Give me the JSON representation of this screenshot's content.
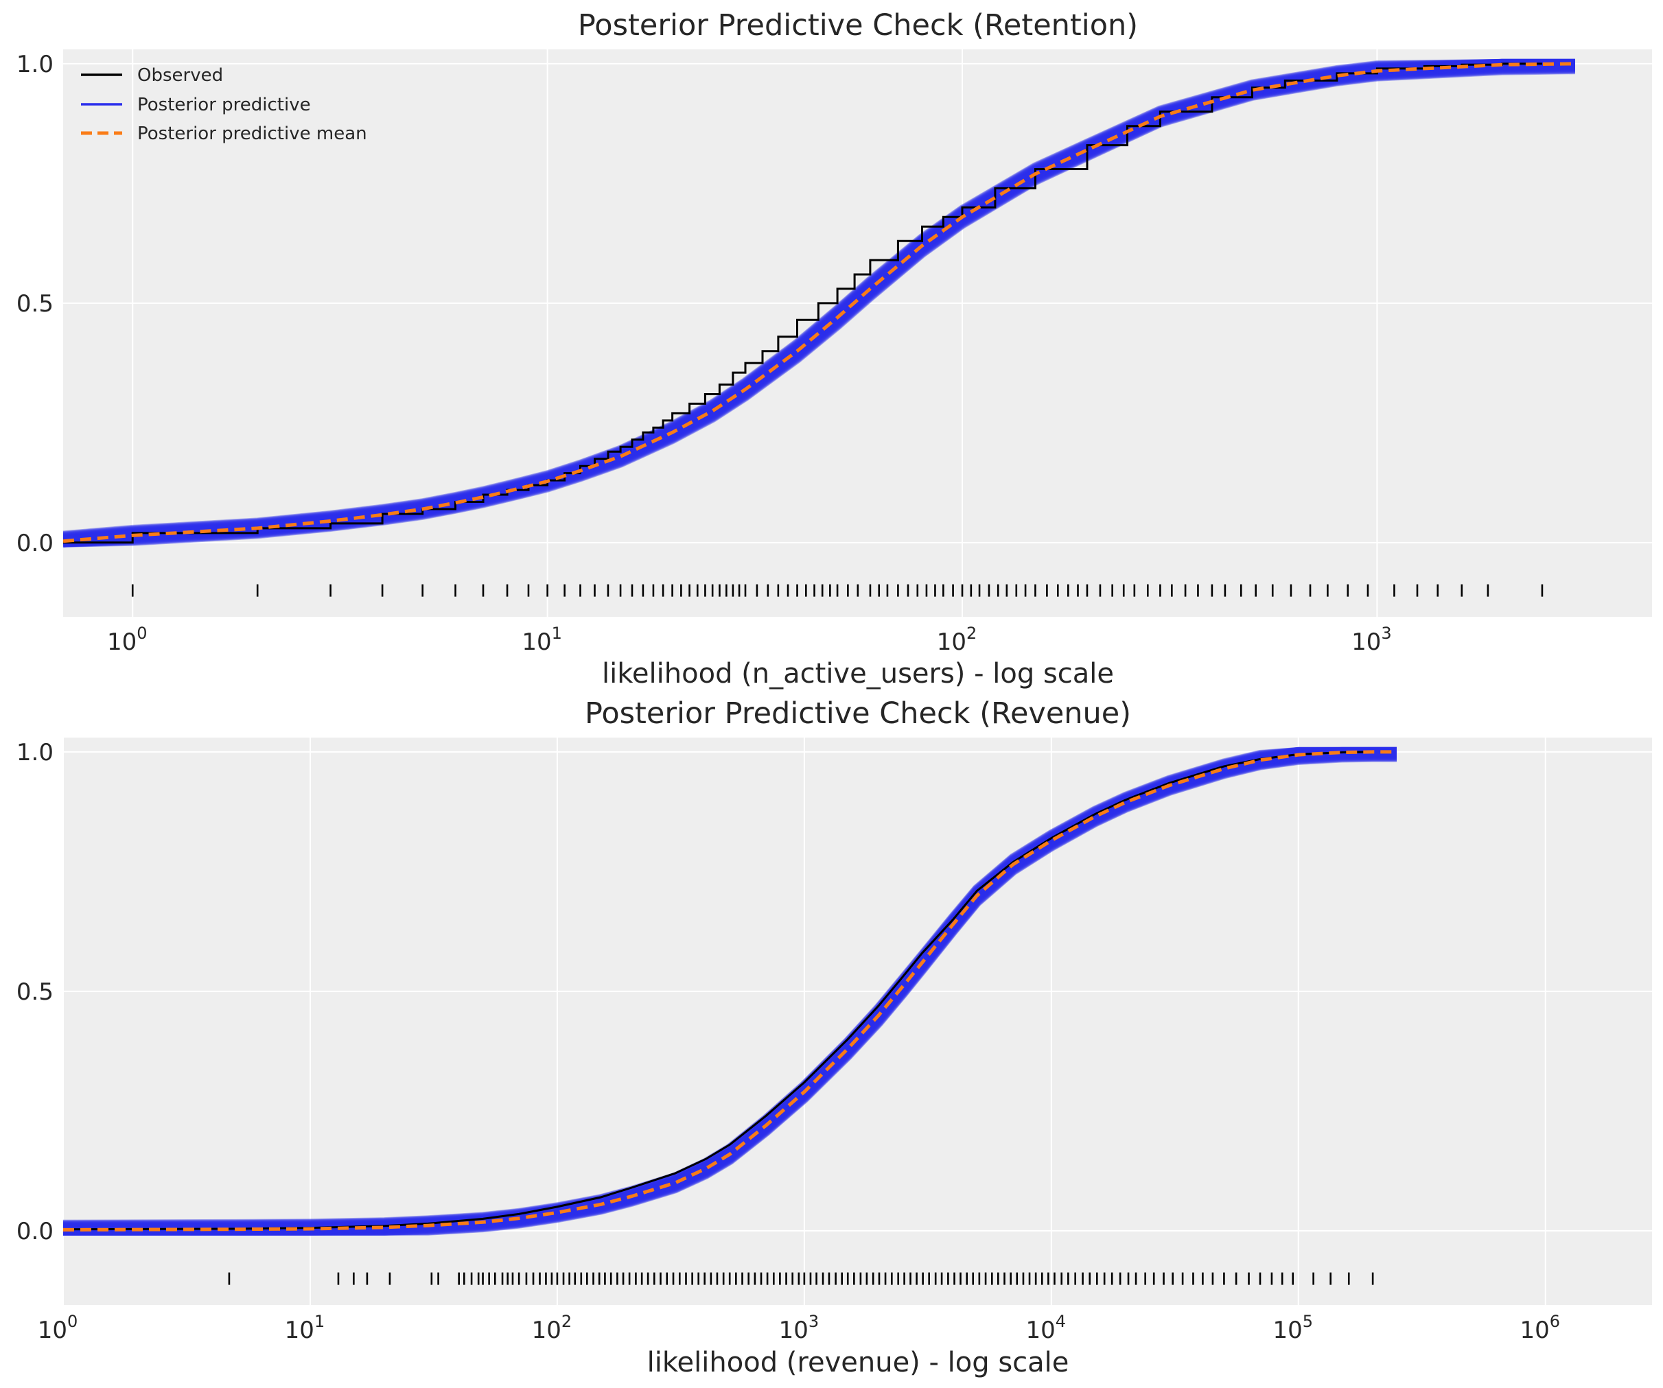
{
  "colors": {
    "background": "#EEEEEE",
    "grid": "#FFFFFF",
    "observed": "#000000",
    "posterior_predictive": "#2A2EEC",
    "posterior_predictive_mean": "#FA7C17"
  },
  "chart_data": [
    {
      "type": "line",
      "title": "Posterior Predictive Check (Retention)",
      "xlabel": "likelihood (n_active_users) - log scale",
      "ylabel": "",
      "xscale": "log",
      "xlim": [
        0.68,
        4600
      ],
      "ylim": [
        -0.155,
        1.03
      ],
      "grid": true,
      "legend": {
        "placement": "top-left",
        "entries": [
          "Observed",
          "Posterior predictive",
          "Posterior predictive mean"
        ]
      },
      "x_ticks": [
        {
          "base": "10",
          "exp": "0",
          "value": 1
        },
        {
          "base": "10",
          "exp": "1",
          "value": 10
        },
        {
          "base": "10",
          "exp": "2",
          "value": 100
        },
        {
          "base": "10",
          "exp": "3",
          "value": 1000
        }
      ],
      "y_ticks": [
        {
          "label": "0.0",
          "value": 0.0
        },
        {
          "label": "0.5",
          "value": 0.5
        },
        {
          "label": "1.0",
          "value": 1.0
        }
      ],
      "series": [
        {
          "name": "Observed",
          "style": "step",
          "x": [
            0.68,
            1,
            2,
            3,
            4,
            5,
            6,
            7,
            8,
            9,
            10,
            11,
            12,
            13,
            14,
            15,
            16,
            17,
            18,
            19,
            20,
            22,
            24,
            26,
            28,
            30,
            33,
            36,
            40,
            45,
            50,
            55,
            60,
            70,
            80,
            90,
            100,
            120,
            150,
            200,
            250,
            300,
            400,
            500,
            600,
            800,
            1000,
            1300,
            1600,
            2000,
            2500
          ],
          "y": [
            0.0,
            0.02,
            0.03,
            0.04,
            0.06,
            0.07,
            0.085,
            0.1,
            0.11,
            0.12,
            0.13,
            0.145,
            0.16,
            0.175,
            0.19,
            0.2,
            0.215,
            0.23,
            0.24,
            0.255,
            0.27,
            0.29,
            0.31,
            0.33,
            0.355,
            0.375,
            0.4,
            0.43,
            0.465,
            0.5,
            0.53,
            0.56,
            0.59,
            0.63,
            0.66,
            0.68,
            0.7,
            0.74,
            0.78,
            0.83,
            0.87,
            0.9,
            0.93,
            0.95,
            0.965,
            0.98,
            0.99,
            0.995,
            0.998,
            1.0,
            1.0
          ]
        },
        {
          "name": "Posterior predictive mean",
          "style": "dashed",
          "x": [
            0.68,
            1,
            2,
            3,
            4,
            5,
            6,
            7,
            8,
            9,
            10,
            12,
            15,
            20,
            25,
            30,
            40,
            50,
            60,
            80,
            100,
            150,
            200,
            300,
            500,
            800,
            1000,
            2000,
            3000
          ],
          "y": [
            0.003,
            0.015,
            0.03,
            0.045,
            0.058,
            0.07,
            0.083,
            0.095,
            0.107,
            0.118,
            0.128,
            0.15,
            0.18,
            0.23,
            0.275,
            0.32,
            0.4,
            0.47,
            0.53,
            0.62,
            0.68,
            0.77,
            0.82,
            0.89,
            0.945,
            0.975,
            0.985,
            0.998,
            1.0
          ]
        }
      ],
      "posterior_band_halfwidth": 0.017,
      "rug": [
        1,
        2,
        3,
        4,
        5,
        6,
        7,
        8,
        9,
        10,
        11,
        12,
        13,
        14,
        15,
        16,
        17,
        18,
        19,
        20,
        21,
        22,
        23,
        24,
        25,
        26,
        27,
        28,
        29,
        30,
        32,
        34,
        36,
        38,
        40,
        42,
        44,
        46,
        48,
        50,
        53,
        56,
        60,
        63,
        66,
        70,
        74,
        78,
        82,
        86,
        90,
        95,
        100,
        105,
        110,
        116,
        122,
        128,
        135,
        142,
        150,
        160,
        170,
        180,
        190,
        200,
        215,
        230,
        245,
        260,
        280,
        300,
        320,
        345,
        370,
        400,
        430,
        470,
        510,
        560,
        620,
        690,
        760,
        850,
        950,
        1100,
        1250,
        1400,
        1600,
        1850,
        2500
      ]
    },
    {
      "type": "line",
      "title": "Posterior Predictive Check (Revenue)",
      "xlabel": "likelihood (revenue) - log scale",
      "ylabel": "",
      "xscale": "log",
      "xlim": [
        1,
        2700000
      ],
      "ylim": [
        -0.155,
        1.03
      ],
      "grid": true,
      "x_ticks": [
        {
          "base": "10",
          "exp": "0",
          "value": 1
        },
        {
          "base": "10",
          "exp": "1",
          "value": 10
        },
        {
          "base": "10",
          "exp": "2",
          "value": 100
        },
        {
          "base": "10",
          "exp": "3",
          "value": 1000
        },
        {
          "base": "10",
          "exp": "4",
          "value": 10000
        },
        {
          "base": "10",
          "exp": "5",
          "value": 100000
        },
        {
          "base": "10",
          "exp": "6",
          "value": 1000000
        }
      ],
      "y_ticks": [
        {
          "label": "0.0",
          "value": 0.0
        },
        {
          "label": "0.5",
          "value": 0.5
        },
        {
          "label": "1.0",
          "value": 1.0
        }
      ],
      "series": [
        {
          "name": "Observed",
          "style": "line",
          "x": [
            1,
            5,
            10,
            20,
            30,
            50,
            70,
            100,
            150,
            200,
            300,
            400,
            500,
            700,
            1000,
            1500,
            2000,
            2500,
            3000,
            4000,
            5000,
            7000,
            10000,
            15000,
            20000,
            30000,
            50000,
            70000,
            100000,
            150000,
            200000
          ],
          "y": [
            0.003,
            0.004,
            0.006,
            0.01,
            0.015,
            0.025,
            0.035,
            0.05,
            0.07,
            0.09,
            0.12,
            0.15,
            0.18,
            0.24,
            0.31,
            0.4,
            0.47,
            0.53,
            0.58,
            0.65,
            0.71,
            0.77,
            0.82,
            0.87,
            0.9,
            0.935,
            0.97,
            0.985,
            0.995,
            0.999,
            1.0
          ]
        },
        {
          "name": "Posterior predictive mean",
          "style": "dashed",
          "x": [
            1,
            5,
            10,
            20,
            30,
            50,
            70,
            100,
            150,
            200,
            300,
            400,
            500,
            700,
            1000,
            1500,
            2000,
            2500,
            3000,
            4000,
            5000,
            7000,
            10000,
            15000,
            20000,
            30000,
            50000,
            70000,
            100000,
            150000,
            200000,
            250000
          ],
          "y": [
            0.002,
            0.003,
            0.004,
            0.007,
            0.011,
            0.018,
            0.026,
            0.038,
            0.055,
            0.072,
            0.1,
            0.13,
            0.16,
            0.22,
            0.29,
            0.38,
            0.45,
            0.51,
            0.56,
            0.64,
            0.7,
            0.765,
            0.815,
            0.865,
            0.895,
            0.93,
            0.965,
            0.983,
            0.994,
            0.999,
            1.0,
            1.0
          ]
        }
      ],
      "posterior_band_halfwidth": 0.016,
      "rug": [
        4.7,
        13,
        15,
        17,
        21,
        31,
        33,
        40,
        42,
        45,
        48,
        50,
        53,
        56,
        60,
        63,
        66,
        70,
        75,
        80,
        85,
        90,
        95,
        100,
        106,
        112,
        118,
        125,
        132,
        140,
        148,
        156,
        165,
        175,
        185,
        196,
        208,
        220,
        233,
        247,
        262,
        278,
        295,
        313,
        332,
        352,
        373,
        395,
        419,
        444,
        471,
        499,
        529,
        561,
        595,
        631,
        669,
        709,
        752,
        797,
        845,
        896,
        950,
        1000,
        1060,
        1120,
        1190,
        1260,
        1340,
        1420,
        1500,
        1590,
        1690,
        1790,
        1900,
        2010,
        2130,
        2260,
        2400,
        2540,
        2690,
        2850,
        3020,
        3200,
        3400,
        3600,
        3820,
        4050,
        4290,
        4550,
        4820,
        5110,
        5420,
        5750,
        6090,
        6460,
        6850,
        7260,
        7700,
        8160,
        8650,
        9170,
        9720,
        10300,
        11000,
        11700,
        12500,
        13400,
        14300,
        15300,
        16400,
        17600,
        19000,
        20500,
        22000,
        24000,
        26000,
        28500,
        31000,
        34000,
        37500,
        41000,
        45000,
        50000,
        56000,
        63000,
        70000,
        78000,
        86000,
        95000,
        115000,
        135000,
        160000,
        200000
      ]
    }
  ]
}
